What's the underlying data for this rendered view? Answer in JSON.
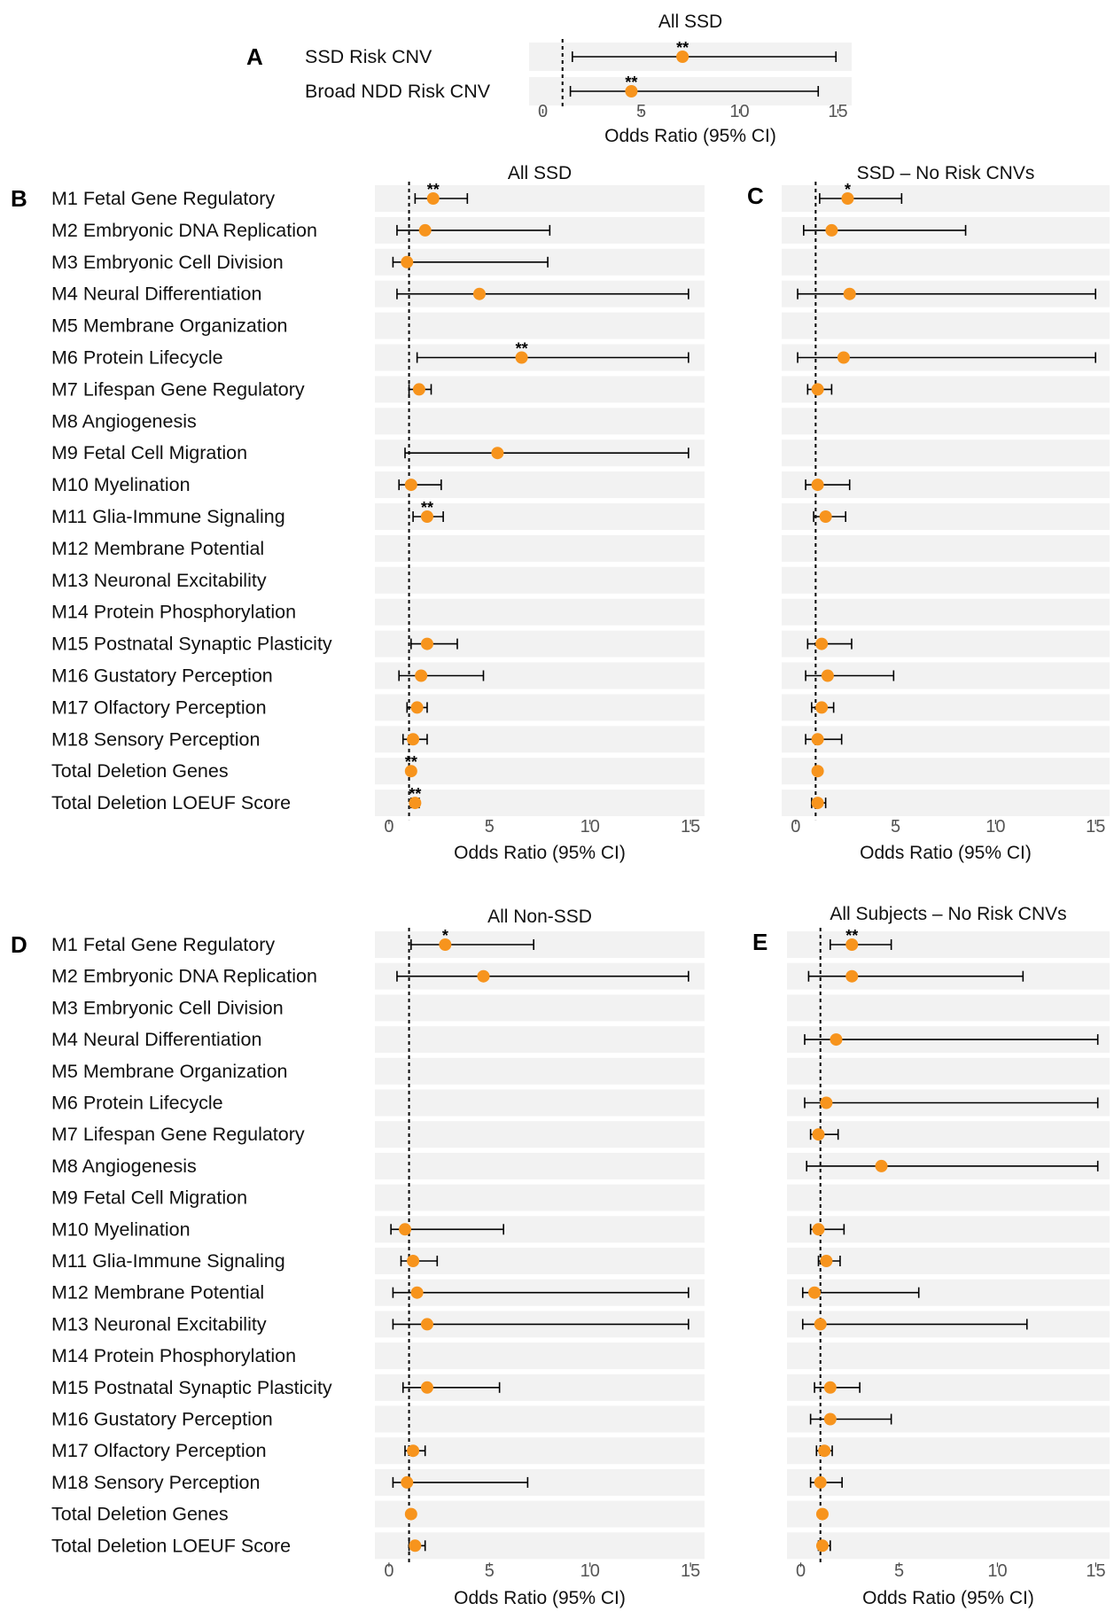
{
  "chart_data": [
    {
      "panel": "A",
      "type": "forest",
      "title": "All SSD",
      "xlabel": "Odds Ratio (95% CI)",
      "xlim": [
        -0.7,
        15.7
      ],
      "xticks": [
        0,
        5,
        10,
        15
      ],
      "reference_line": 1,
      "rows": [
        {
          "label": "SSD Risk CNV",
          "or": 7.1,
          "lo": 1.5,
          "hi": 14.9,
          "sig": "**"
        },
        {
          "label": "Broad NDD Risk CNV",
          "or": 4.5,
          "lo": 1.4,
          "hi": 14.0,
          "sig": "**"
        }
      ]
    },
    {
      "panel": "B",
      "type": "forest",
      "title": "All SSD",
      "xlabel": "Odds Ratio (95% CI)",
      "xlim": [
        -0.7,
        15.7
      ],
      "xticks": [
        0,
        5,
        10,
        15
      ],
      "reference_line": 1,
      "rows": [
        {
          "label": "M1 Fetal Gene Regulatory",
          "or": 2.2,
          "lo": 1.3,
          "hi": 3.9,
          "sig": "**"
        },
        {
          "label": "M2 Embryonic DNA Replication",
          "or": 1.8,
          "lo": 0.4,
          "hi": 8.0,
          "sig": ""
        },
        {
          "label": "M3 Embryonic Cell Division",
          "or": 0.9,
          "lo": 0.2,
          "hi": 7.9,
          "sig": ""
        },
        {
          "label": "M4 Neural Differentiation",
          "or": 4.5,
          "lo": 0.4,
          "hi": 14.9,
          "sig": ""
        },
        {
          "label": "M5 Membrane Organization",
          "or": null,
          "lo": null,
          "hi": null,
          "sig": ""
        },
        {
          "label": "M6 Protein Lifecycle",
          "or": 6.6,
          "lo": 1.4,
          "hi": 14.9,
          "sig": "**"
        },
        {
          "label": "M7 Lifespan Gene Regulatory",
          "or": 1.5,
          "lo": 1.0,
          "hi": 2.1,
          "sig": ""
        },
        {
          "label": "M8 Angiogenesis",
          "or": null,
          "lo": null,
          "hi": null,
          "sig": ""
        },
        {
          "label": "M9 Fetal Cell Migration",
          "or": 5.4,
          "lo": 0.8,
          "hi": 14.9,
          "sig": ""
        },
        {
          "label": "M10 Myelination",
          "or": 1.1,
          "lo": 0.5,
          "hi": 2.6,
          "sig": ""
        },
        {
          "label": "M11 Glia-Immune Signaling",
          "or": 1.9,
          "lo": 1.2,
          "hi": 2.7,
          "sig": "**"
        },
        {
          "label": "M12 Membrane Potential",
          "or": null,
          "lo": null,
          "hi": null,
          "sig": ""
        },
        {
          "label": "M13 Neuronal Excitability",
          "or": null,
          "lo": null,
          "hi": null,
          "sig": ""
        },
        {
          "label": "M14 Protein Phosphorylation",
          "or": null,
          "lo": null,
          "hi": null,
          "sig": ""
        },
        {
          "label": "M15 Postnatal Synaptic Plasticity",
          "or": 1.9,
          "lo": 1.1,
          "hi": 3.4,
          "sig": ""
        },
        {
          "label": "M16 Gustatory Perception",
          "or": 1.6,
          "lo": 0.5,
          "hi": 4.7,
          "sig": ""
        },
        {
          "label": "M17 Olfactory Perception",
          "or": 1.4,
          "lo": 0.9,
          "hi": 1.9,
          "sig": ""
        },
        {
          "label": "M18 Sensory Perception",
          "or": 1.2,
          "lo": 0.7,
          "hi": 1.9,
          "sig": ""
        },
        {
          "label": "Total Deletion Genes",
          "or": 1.1,
          "lo": 1.0,
          "hi": 1.2,
          "sig": "**"
        },
        {
          "label": "Total Deletion LOEUF Score",
          "or": 1.3,
          "lo": 1.1,
          "hi": 1.5,
          "sig": "**"
        }
      ]
    },
    {
      "panel": "C",
      "type": "forest",
      "title": "SSD – No Risk CNVs",
      "xlabel": "Odds Ratio (95% CI)",
      "xlim": [
        -0.7,
        15.7
      ],
      "xticks": [
        0,
        5,
        10,
        15
      ],
      "reference_line": 1,
      "rows": [
        {
          "label": "M1 Fetal Gene Regulatory",
          "or": 2.6,
          "lo": 1.2,
          "hi": 5.3,
          "sig": "*"
        },
        {
          "label": "M2 Embryonic DNA Replication",
          "or": 1.8,
          "lo": 0.4,
          "hi": 8.5,
          "sig": ""
        },
        {
          "label": "M3 Embryonic Cell Division",
          "or": null,
          "lo": null,
          "hi": null,
          "sig": ""
        },
        {
          "label": "M4 Neural Differentiation",
          "or": 2.7,
          "lo": 0.1,
          "hi": 15.0,
          "sig": ""
        },
        {
          "label": "M5 Membrane Organization",
          "or": null,
          "lo": null,
          "hi": null,
          "sig": ""
        },
        {
          "label": "M6 Protein Lifecycle",
          "or": 2.4,
          "lo": 0.1,
          "hi": 15.0,
          "sig": ""
        },
        {
          "label": "M7 Lifespan Gene Regulatory",
          "or": 1.1,
          "lo": 0.6,
          "hi": 1.8,
          "sig": ""
        },
        {
          "label": "M8 Angiogenesis",
          "or": null,
          "lo": null,
          "hi": null,
          "sig": ""
        },
        {
          "label": "M9 Fetal Cell Migration",
          "or": null,
          "lo": null,
          "hi": null,
          "sig": ""
        },
        {
          "label": "M10 Myelination",
          "or": 1.1,
          "lo": 0.5,
          "hi": 2.7,
          "sig": ""
        },
        {
          "label": "M11 Glia-Immune Signaling",
          "or": 1.5,
          "lo": 0.9,
          "hi": 2.5,
          "sig": ""
        },
        {
          "label": "M12 Membrane Potential",
          "or": null,
          "lo": null,
          "hi": null,
          "sig": ""
        },
        {
          "label": "M13 Neuronal Excitability",
          "or": null,
          "lo": null,
          "hi": null,
          "sig": ""
        },
        {
          "label": "M14 Protein Phosphorylation",
          "or": null,
          "lo": null,
          "hi": null,
          "sig": ""
        },
        {
          "label": "M15 Postnatal Synaptic Plasticity",
          "or": 1.3,
          "lo": 0.6,
          "hi": 2.8,
          "sig": ""
        },
        {
          "label": "M16 Gustatory Perception",
          "or": 1.6,
          "lo": 0.5,
          "hi": 4.9,
          "sig": ""
        },
        {
          "label": "M17 Olfactory Perception",
          "or": 1.3,
          "lo": 0.8,
          "hi": 1.9,
          "sig": ""
        },
        {
          "label": "M18 Sensory Perception",
          "or": 1.1,
          "lo": 0.5,
          "hi": 2.3,
          "sig": ""
        },
        {
          "label": "Total Deletion Genes",
          "or": 1.1,
          "lo": 1.0,
          "hi": 1.2,
          "sig": ""
        },
        {
          "label": "Total Deletion LOEUF Score",
          "or": 1.1,
          "lo": 0.8,
          "hi": 1.5,
          "sig": ""
        }
      ]
    },
    {
      "panel": "D",
      "type": "forest",
      "title": "All Non-SSD",
      "xlabel": "Odds Ratio (95% CI)",
      "xlim": [
        -0.7,
        15.7
      ],
      "xticks": [
        0,
        5,
        10,
        15
      ],
      "reference_line": 1,
      "rows": [
        {
          "label": "M1 Fetal Gene Regulatory",
          "or": 2.8,
          "lo": 1.1,
          "hi": 7.2,
          "sig": "*"
        },
        {
          "label": "M2 Embryonic DNA Replication",
          "or": 4.7,
          "lo": 0.4,
          "hi": 14.9,
          "sig": ""
        },
        {
          "label": "M3 Embryonic Cell Division",
          "or": null,
          "lo": null,
          "hi": null,
          "sig": ""
        },
        {
          "label": "M4 Neural Differentiation",
          "or": null,
          "lo": null,
          "hi": null,
          "sig": ""
        },
        {
          "label": "M5 Membrane Organization",
          "or": null,
          "lo": null,
          "hi": null,
          "sig": ""
        },
        {
          "label": "M6 Protein Lifecycle",
          "or": null,
          "lo": null,
          "hi": null,
          "sig": ""
        },
        {
          "label": "M7 Lifespan Gene Regulatory",
          "or": null,
          "lo": null,
          "hi": null,
          "sig": ""
        },
        {
          "label": "M8 Angiogenesis",
          "or": null,
          "lo": null,
          "hi": null,
          "sig": ""
        },
        {
          "label": "M9 Fetal Cell Migration",
          "or": null,
          "lo": null,
          "hi": null,
          "sig": ""
        },
        {
          "label": "M10 Myelination",
          "or": 0.8,
          "lo": 0.1,
          "hi": 5.7,
          "sig": ""
        },
        {
          "label": "M11 Glia-Immune Signaling",
          "or": 1.2,
          "lo": 0.6,
          "hi": 2.4,
          "sig": ""
        },
        {
          "label": "M12 Membrane Potential",
          "or": 1.4,
          "lo": 0.2,
          "hi": 14.9,
          "sig": ""
        },
        {
          "label": "M13 Neuronal Excitability",
          "or": 1.9,
          "lo": 0.2,
          "hi": 14.9,
          "sig": ""
        },
        {
          "label": "M14 Protein Phosphorylation",
          "or": null,
          "lo": null,
          "hi": null,
          "sig": ""
        },
        {
          "label": "M15 Postnatal Synaptic Plasticity",
          "or": 1.9,
          "lo": 0.7,
          "hi": 5.5,
          "sig": ""
        },
        {
          "label": "M16 Gustatory Perception",
          "or": null,
          "lo": null,
          "hi": null,
          "sig": ""
        },
        {
          "label": "M17 Olfactory Perception",
          "or": 1.2,
          "lo": 0.8,
          "hi": 1.8,
          "sig": ""
        },
        {
          "label": "M18 Sensory Perception",
          "or": 0.9,
          "lo": 0.2,
          "hi": 6.9,
          "sig": ""
        },
        {
          "label": "Total Deletion Genes",
          "or": 1.1,
          "lo": 1.0,
          "hi": 1.2,
          "sig": ""
        },
        {
          "label": "Total Deletion LOEUF Score",
          "or": 1.3,
          "lo": 1.0,
          "hi": 1.8,
          "sig": ""
        }
      ]
    },
    {
      "panel": "E",
      "type": "forest",
      "title": "All Subjects – No Risk CNVs",
      "xlabel": "Odds Ratio (95% CI)",
      "xlim": [
        -0.7,
        15.7
      ],
      "xticks": [
        0,
        5,
        10,
        15
      ],
      "reference_line": 1,
      "rows": [
        {
          "label": "M1 Fetal Gene Regulatory",
          "or": 2.6,
          "lo": 1.5,
          "hi": 4.6,
          "sig": "**"
        },
        {
          "label": "M2 Embryonic DNA Replication",
          "or": 2.6,
          "lo": 0.4,
          "hi": 11.3,
          "sig": ""
        },
        {
          "label": "M3 Embryonic Cell Division",
          "or": null,
          "lo": null,
          "hi": null,
          "sig": ""
        },
        {
          "label": "M4 Neural Differentiation",
          "or": 1.8,
          "lo": 0.2,
          "hi": 15.1,
          "sig": ""
        },
        {
          "label": "M5 Membrane Organization",
          "or": null,
          "lo": null,
          "hi": null,
          "sig": ""
        },
        {
          "label": "M6 Protein Lifecycle",
          "or": 1.3,
          "lo": 0.2,
          "hi": 15.1,
          "sig": ""
        },
        {
          "label": "M7 Lifespan Gene Regulatory",
          "or": 0.9,
          "lo": 0.5,
          "hi": 1.9,
          "sig": ""
        },
        {
          "label": "M8 Angiogenesis",
          "or": 4.1,
          "lo": 0.3,
          "hi": 15.1,
          "sig": ""
        },
        {
          "label": "M9 Fetal Cell Migration",
          "or": null,
          "lo": null,
          "hi": null,
          "sig": ""
        },
        {
          "label": "M10 Myelination",
          "or": 0.9,
          "lo": 0.5,
          "hi": 2.2,
          "sig": ""
        },
        {
          "label": "M11 Glia-Immune Signaling",
          "or": 1.3,
          "lo": 0.9,
          "hi": 2.0,
          "sig": ""
        },
        {
          "label": "M12 Membrane Potential",
          "or": 0.7,
          "lo": 0.1,
          "hi": 6.0,
          "sig": ""
        },
        {
          "label": "M13 Neuronal Excitability",
          "or": 1.0,
          "lo": 0.1,
          "hi": 11.5,
          "sig": ""
        },
        {
          "label": "M14 Protein Phosphorylation",
          "or": null,
          "lo": null,
          "hi": null,
          "sig": ""
        },
        {
          "label": "M15 Postnatal Synaptic Plasticity",
          "or": 1.5,
          "lo": 0.7,
          "hi": 3.0,
          "sig": ""
        },
        {
          "label": "M16 Gustatory Perception",
          "or": 1.5,
          "lo": 0.5,
          "hi": 4.6,
          "sig": ""
        },
        {
          "label": "M17 Olfactory Perception",
          "or": 1.2,
          "lo": 0.8,
          "hi": 1.6,
          "sig": ""
        },
        {
          "label": "M18 Sensory Perception",
          "or": 1.0,
          "lo": 0.5,
          "hi": 2.1,
          "sig": ""
        },
        {
          "label": "Total Deletion Genes",
          "or": 1.1,
          "lo": 1.0,
          "hi": 1.2,
          "sig": ""
        },
        {
          "label": "Total Deletion LOEUF Score",
          "or": 1.1,
          "lo": 0.9,
          "hi": 1.5,
          "sig": ""
        }
      ]
    }
  ],
  "colors": {
    "point": "#f7941d",
    "band": "#f2f2f2",
    "line": "#000000",
    "text": "#111111",
    "axis_text": "#555555"
  }
}
